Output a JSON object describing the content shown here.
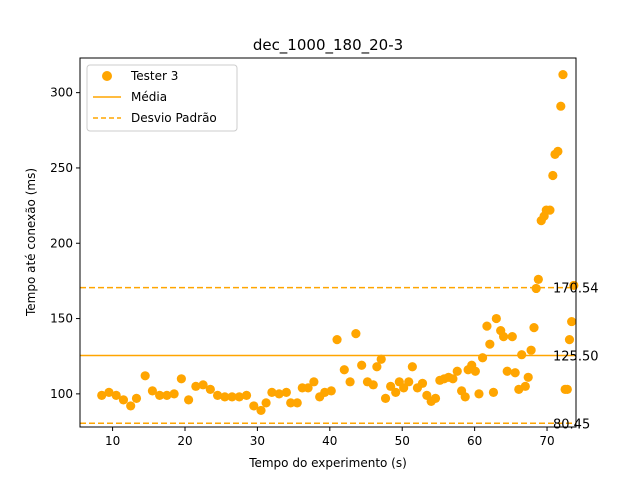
{
  "chart_data": {
    "type": "scatter",
    "title": "dec_1000_180_20-3",
    "xlabel": "Tempo do experimento (s)",
    "ylabel": "Tempo até conexão (ms)",
    "xlim": [
      5.5,
      74
    ],
    "ylim": [
      78,
      323
    ],
    "xticks": [
      10,
      20,
      30,
      40,
      50,
      60,
      70
    ],
    "yticks": [
      100,
      150,
      200,
      250,
      300
    ],
    "grid": false,
    "legend_position": "top-left",
    "colors": {
      "series": "#FFA500"
    },
    "series": [
      {
        "name": "Tester 3",
        "points": [
          [
            8.5,
            99
          ],
          [
            9.5,
            101
          ],
          [
            10.5,
            99
          ],
          [
            11.5,
            96
          ],
          [
            12.5,
            92
          ],
          [
            13.3,
            97
          ],
          [
            14.5,
            112
          ],
          [
            15.5,
            102
          ],
          [
            16.5,
            99
          ],
          [
            17.5,
            99
          ],
          [
            18.5,
            100
          ],
          [
            19.5,
            110
          ],
          [
            20.5,
            96
          ],
          [
            21.5,
            105
          ],
          [
            22.5,
            106
          ],
          [
            23.5,
            103
          ],
          [
            24.5,
            99
          ],
          [
            25.5,
            98
          ],
          [
            26.5,
            98
          ],
          [
            27.5,
            98
          ],
          [
            28.5,
            99
          ],
          [
            29.5,
            92
          ],
          [
            30.5,
            89
          ],
          [
            31.2,
            94
          ],
          [
            32,
            101
          ],
          [
            33,
            100
          ],
          [
            34,
            101
          ],
          [
            34.6,
            94
          ],
          [
            35.5,
            94
          ],
          [
            36.2,
            104
          ],
          [
            37,
            104
          ],
          [
            37.8,
            108
          ],
          [
            38.6,
            98
          ],
          [
            39.3,
            101
          ],
          [
            40.2,
            102
          ],
          [
            41,
            136
          ],
          [
            42,
            116
          ],
          [
            42.8,
            108
          ],
          [
            43.6,
            140
          ],
          [
            44.4,
            119
          ],
          [
            45.2,
            108
          ],
          [
            46,
            106
          ],
          [
            46.5,
            118
          ],
          [
            47.1,
            123
          ],
          [
            47.7,
            97
          ],
          [
            48.4,
            105
          ],
          [
            49.1,
            101
          ],
          [
            49.6,
            108
          ],
          [
            50.2,
            104
          ],
          [
            50.9,
            108
          ],
          [
            51.4,
            118
          ],
          [
            52.1,
            104
          ],
          [
            52.8,
            107
          ],
          [
            53.4,
            99
          ],
          [
            54,
            95
          ],
          [
            54.6,
            97
          ],
          [
            55.2,
            109
          ],
          [
            55.8,
            110
          ],
          [
            56.4,
            111
          ],
          [
            57,
            110
          ],
          [
            57.6,
            115
          ],
          [
            58.2,
            102
          ],
          [
            58.7,
            98
          ],
          [
            59.1,
            116
          ],
          [
            59.6,
            119
          ],
          [
            60.1,
            115
          ],
          [
            60.6,
            100
          ],
          [
            61.1,
            124
          ],
          [
            61.7,
            145
          ],
          [
            62.1,
            133
          ],
          [
            62.6,
            101
          ],
          [
            63,
            150
          ],
          [
            63.6,
            142
          ],
          [
            64,
            138
          ],
          [
            64.5,
            115
          ],
          [
            65.2,
            138
          ],
          [
            65.6,
            114
          ],
          [
            66.1,
            103
          ],
          [
            66.5,
            126
          ],
          [
            67,
            105
          ],
          [
            67.4,
            111
          ],
          [
            67.8,
            129
          ],
          [
            68.2,
            144
          ],
          [
            68.5,
            170
          ],
          [
            68.8,
            176
          ],
          [
            69.2,
            215
          ],
          [
            69.6,
            218
          ],
          [
            69.9,
            222
          ],
          [
            70.4,
            222
          ],
          [
            70.8,
            245
          ],
          [
            71.1,
            259
          ],
          [
            71.5,
            261
          ],
          [
            71.9,
            291
          ],
          [
            72.2,
            312
          ],
          [
            72.5,
            103
          ],
          [
            72.8,
            103
          ],
          [
            73.1,
            136
          ],
          [
            73.4,
            148
          ],
          [
            73.7,
            172
          ]
        ]
      }
    ],
    "reference_lines": [
      {
        "name": "Média",
        "value": 125.5,
        "style": "solid",
        "label": "125.50"
      },
      {
        "name": "Desvio Padrão",
        "value": 170.54,
        "style": "dashed",
        "label": "170.54"
      },
      {
        "value": 80.45,
        "style": "dashed",
        "label": "80.45"
      }
    ]
  }
}
